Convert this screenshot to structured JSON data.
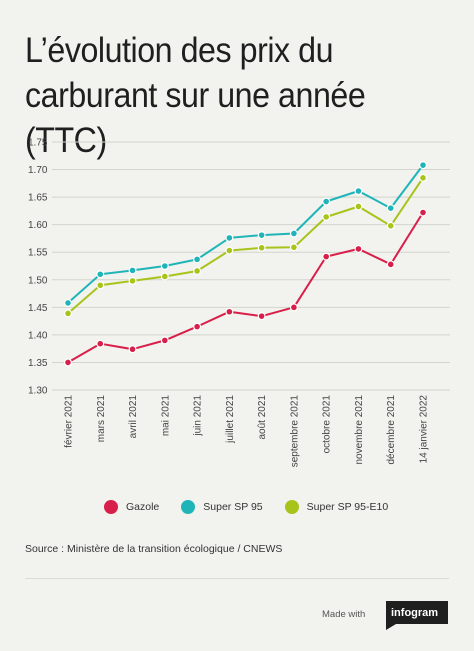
{
  "title": "L’évolution des prix du carburant sur une année (TTC)",
  "source": "Source : Ministère de la transition écologique / CNEWS",
  "footer": {
    "made_with": "Made with",
    "brand": "infogram"
  },
  "colors": {
    "gazole": "#d81f4a",
    "sp95": "#1fb5b8",
    "e10": "#a8c41a",
    "grid": "#d4d4cf"
  },
  "chart_data": {
    "type": "line",
    "categories": [
      "février 2021",
      "mars 2021",
      "avril 2021",
      "mai 2021",
      "juin 2021",
      "juillet 2021",
      "août 2021",
      "septembre 2021",
      "octobre 2021",
      "novembre 2021",
      "décembre 2021",
      "14 janvier 2022"
    ],
    "yticks": [
      "1.75",
      "1.70",
      "1.65",
      "1.60",
      "1.55",
      "1.50",
      "1.45",
      "1.40",
      "1.35",
      "1.30"
    ],
    "ylim": [
      1.3,
      1.75
    ],
    "grid": true,
    "legend_position": "bottom",
    "series": [
      {
        "name": "Gazole",
        "color": "#d81f4a",
        "values": [
          1.35,
          1.384,
          1.374,
          1.39,
          1.415,
          1.442,
          1.434,
          1.45,
          1.542,
          1.556,
          1.528,
          1.622
        ]
      },
      {
        "name": "Super SP 95",
        "color": "#1fb5b8",
        "values": [
          1.458,
          1.51,
          1.517,
          1.525,
          1.537,
          1.576,
          1.581,
          1.584,
          1.642,
          1.661,
          1.63,
          1.708
        ]
      },
      {
        "name": "Super SP 95-E10",
        "color": "#a8c41a",
        "values": [
          1.439,
          1.49,
          1.498,
          1.506,
          1.516,
          1.553,
          1.558,
          1.559,
          1.614,
          1.633,
          1.598,
          1.685
        ]
      }
    ]
  }
}
